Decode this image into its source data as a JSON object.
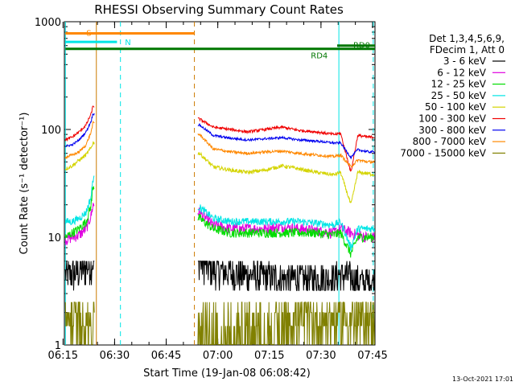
{
  "chart_data": {
    "type": "line",
    "title": "RHESSI Observing Summary Count Rates",
    "xlabel": "Start Time (19-Jan-08 06:08:42)",
    "ylabel": "Count Rate (s⁻¹ detector⁻¹)",
    "yscale": "log",
    "ylim": [
      1,
      1000
    ],
    "xlim_minutes": [
      6.7,
      97.0
    ],
    "x_tick_labels": [
      "06:15",
      "06:30",
      "06:45",
      "07:00",
      "07:15",
      "07:30",
      "07:45"
    ],
    "y_tick_labels": [
      "1",
      "10",
      "100",
      "1000"
    ],
    "data_gaps": [
      [
        15.5,
        45.5
      ],
      [
        86.5,
        91.0
      ]
    ],
    "legend_header": [
      "Det 1,3,4,5,6,9,",
      "FDecim 1, Att 0"
    ],
    "series": [
      {
        "name": "3 - 6 keV",
        "color": "#000000",
        "x": [
          7,
          9,
          11,
          13,
          14.5,
          15,
          46,
          50,
          55,
          60,
          65,
          70,
          75,
          80,
          85,
          87,
          90,
          92,
          95,
          97
        ],
        "y": [
          4.5,
          4.6,
          4.8,
          5.2,
          5.8,
          6.0,
          6.3,
          5.0,
          4.8,
          4.5,
          4.4,
          4.2,
          4.2,
          4.2,
          4.3,
          4.5,
          4.3,
          4.0,
          3.9,
          3.9
        ]
      },
      {
        "name": "6 - 12 keV",
        "color": "#e000e0",
        "x": [
          7,
          9,
          11,
          13,
          14.5,
          15,
          46,
          50,
          55,
          60,
          65,
          70,
          75,
          80,
          85,
          87,
          90,
          92,
          95,
          97
        ],
        "y": [
          9.5,
          10,
          10.5,
          12,
          16,
          20,
          17,
          13,
          12,
          12,
          12,
          12.5,
          12,
          11.5,
          11,
          12,
          11,
          10.5,
          10,
          10
        ]
      },
      {
        "name": "12 - 25 keV",
        "color": "#00dd00",
        "x": [
          7,
          9,
          11,
          13,
          14.5,
          15,
          46,
          50,
          55,
          60,
          65,
          70,
          75,
          80,
          85,
          87,
          90,
          92,
          95,
          97
        ],
        "y": [
          10,
          11,
          12,
          14,
          20,
          30,
          15,
          12,
          11,
          11,
          11,
          11,
          11,
          11,
          10.5,
          11,
          7,
          10,
          10,
          10
        ]
      },
      {
        "name": "25 - 50 keV",
        "color": "#00e5e5",
        "x": [
          7,
          9,
          11,
          13,
          14.5,
          15,
          46,
          50,
          55,
          60,
          65,
          70,
          75,
          80,
          85,
          87,
          90,
          92,
          95,
          97
        ],
        "y": [
          14,
          14,
          15,
          17,
          24,
          35,
          19,
          15,
          14,
          14,
          14,
          14,
          14,
          13.5,
          13,
          14,
          8,
          12,
          12,
          12
        ]
      },
      {
        "name": "50 - 100 keV",
        "color": "#d4d400",
        "x": [
          7,
          9,
          11,
          13,
          14.5,
          15,
          46,
          50,
          55,
          60,
          65,
          70,
          75,
          80,
          85,
          87,
          90,
          92,
          95,
          97
        ],
        "y": [
          43,
          46,
          52,
          58,
          68,
          75,
          60,
          45,
          42,
          40,
          42,
          46,
          43,
          40,
          38,
          40,
          20,
          40,
          39,
          38
        ]
      },
      {
        "name": "100 - 300 keV",
        "color": "#f00000",
        "x": [
          7,
          9,
          11,
          13,
          14.5,
          15,
          46,
          50,
          55,
          60,
          65,
          70,
          75,
          80,
          85,
          87,
          90,
          92,
          95,
          97
        ],
        "y": [
          80,
          85,
          95,
          110,
          140,
          165,
          125,
          105,
          100,
          95,
          100,
          105,
          98,
          95,
          90,
          92,
          40,
          88,
          85,
          85
        ]
      },
      {
        "name": "300 - 800 keV",
        "color": "#0000f0",
        "x": [
          7,
          9,
          11,
          13,
          14.5,
          15,
          46,
          50,
          55,
          60,
          65,
          70,
          75,
          80,
          85,
          87,
          90,
          92,
          95,
          97
        ],
        "y": [
          70,
          72,
          80,
          95,
          120,
          140,
          110,
          88,
          83,
          80,
          82,
          84,
          80,
          78,
          75,
          75,
          55,
          65,
          62,
          62
        ]
      },
      {
        "name": "800 - 7000 keV",
        "color": "#ff8800",
        "x": [
          7,
          9,
          11,
          13,
          14.5,
          15,
          46,
          50,
          55,
          60,
          65,
          70,
          75,
          80,
          85,
          87,
          90,
          92,
          95,
          97
        ],
        "y": [
          55,
          58,
          62,
          72,
          95,
          115,
          90,
          66,
          62,
          60,
          62,
          63,
          60,
          58,
          56,
          58,
          45,
          52,
          50,
          50
        ]
      },
      {
        "name": "7000 - 15000 keV",
        "color": "#808000",
        "x": [
          7,
          9,
          11,
          13,
          14.5,
          15,
          46,
          50,
          55,
          60,
          65,
          70,
          75,
          80,
          85,
          87,
          90,
          92,
          95,
          97
        ],
        "y": [
          2.0,
          1.5,
          2.0,
          2.2,
          2.5,
          2.5,
          2.0,
          1.6,
          1.5,
          1.5,
          1.6,
          2.0,
          2.5,
          2.6,
          2.6,
          2.4,
          2.0,
          2.0,
          1.5,
          1.5
        ]
      }
    ],
    "flags": [
      {
        "label": "S",
        "color": "#ff8800",
        "x0": 7,
        "x1": 44.5,
        "level": 780
      },
      {
        "label": "N",
        "color": "#00e5e5",
        "x0": 7,
        "x1": 22,
        "level": 650
      },
      {
        "label": "RD0",
        "color": "#007700",
        "x0": 86,
        "x1": 97,
        "level": 600
      },
      {
        "label": "RD4",
        "color": "#007700",
        "x0": 7,
        "x1": 97,
        "level": 560
      }
    ],
    "vertical_markers": [
      {
        "x": 7.0,
        "color": "#00e5e5",
        "style": "solid"
      },
      {
        "x": 16.0,
        "color": "#cc7a00",
        "style": "solid"
      },
      {
        "x": 23.0,
        "color": "#00e5e5",
        "style": "dashed"
      },
      {
        "x": 44.5,
        "color": "#cc7a00",
        "style": "dashed"
      },
      {
        "x": 86.5,
        "color": "#00e5e5",
        "style": "solid"
      },
      {
        "x": 96.5,
        "color": "#00e5e5",
        "style": "dashed"
      }
    ],
    "timestamp": "13-Oct-2021 17:01"
  }
}
